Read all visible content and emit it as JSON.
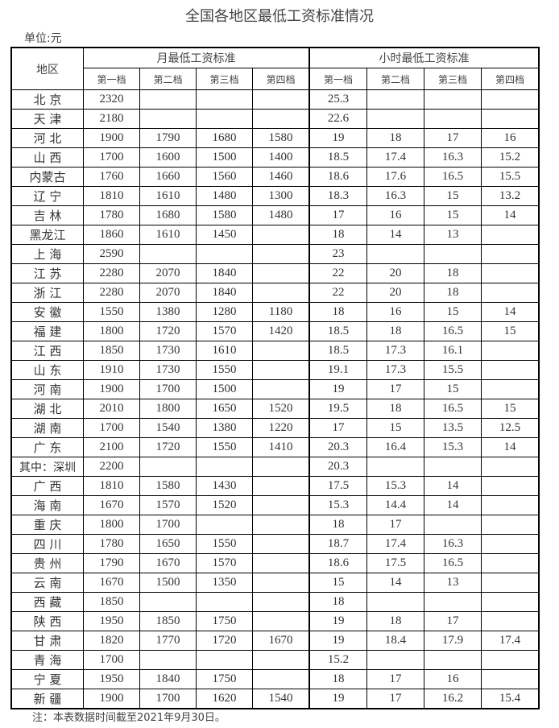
{
  "title": "全国各地区最低工资标准情况",
  "unit": "单位:元",
  "headers": {
    "region": "地区",
    "monthly": "月最低工资标准",
    "hourly": "小时最低工资标准",
    "tiers": [
      "第一档",
      "第二档",
      "第三档",
      "第四档"
    ]
  },
  "rows": [
    {
      "region": "北 京",
      "m": [
        "2320",
        "",
        "",
        ""
      ],
      "h": [
        "25.3",
        "",
        "",
        ""
      ]
    },
    {
      "region": "天 津",
      "m": [
        "2180",
        "",
        "",
        ""
      ],
      "h": [
        "22.6",
        "",
        "",
        ""
      ]
    },
    {
      "region": "河 北",
      "m": [
        "1900",
        "1790",
        "1680",
        "1580"
      ],
      "h": [
        "19",
        "18",
        "17",
        "16"
      ]
    },
    {
      "region": "山 西",
      "m": [
        "1700",
        "1600",
        "1500",
        "1400"
      ],
      "h": [
        "18.5",
        "17.4",
        "16.3",
        "15.2"
      ]
    },
    {
      "region": "内蒙古",
      "m": [
        "1760",
        "1660",
        "1560",
        "1460"
      ],
      "h": [
        "18.6",
        "17.6",
        "16.5",
        "15.5"
      ]
    },
    {
      "region": "辽 宁",
      "m": [
        "1810",
        "1610",
        "1480",
        "1300"
      ],
      "h": [
        "18.3",
        "16.3",
        "15",
        "13.2"
      ]
    },
    {
      "region": "吉 林",
      "m": [
        "1780",
        "1680",
        "1580",
        "1480"
      ],
      "h": [
        "17",
        "16",
        "15",
        "14"
      ]
    },
    {
      "region": "黑龙江",
      "m": [
        "1860",
        "1610",
        "1450",
        ""
      ],
      "h": [
        "18",
        "14",
        "13",
        ""
      ]
    },
    {
      "region": "上 海",
      "m": [
        "2590",
        "",
        "",
        ""
      ],
      "h": [
        "23",
        "",
        "",
        ""
      ]
    },
    {
      "region": "江 苏",
      "m": [
        "2280",
        "2070",
        "1840",
        ""
      ],
      "h": [
        "22",
        "20",
        "18",
        ""
      ]
    },
    {
      "region": "浙 江",
      "m": [
        "2280",
        "2070",
        "1840",
        ""
      ],
      "h": [
        "22",
        "20",
        "18",
        ""
      ]
    },
    {
      "region": "安 徽",
      "m": [
        "1550",
        "1380",
        "1280",
        "1180"
      ],
      "h": [
        "18",
        "16",
        "15",
        "14"
      ]
    },
    {
      "region": "福 建",
      "m": [
        "1800",
        "1720",
        "1570",
        "1420"
      ],
      "h": [
        "18.5",
        "18",
        "16.5",
        "15"
      ]
    },
    {
      "region": "江 西",
      "m": [
        "1850",
        "1730",
        "1610",
        ""
      ],
      "h": [
        "18.5",
        "17.3",
        "16.1",
        ""
      ]
    },
    {
      "region": "山 东",
      "m": [
        "1910",
        "1730",
        "1550",
        ""
      ],
      "h": [
        "19.1",
        "17.3",
        "15.5",
        ""
      ]
    },
    {
      "region": "河 南",
      "m": [
        "1900",
        "1700",
        "1500",
        ""
      ],
      "h": [
        "19",
        "17",
        "15",
        ""
      ]
    },
    {
      "region": "湖 北",
      "m": [
        "2010",
        "1800",
        "1650",
        "1520"
      ],
      "h": [
        "19.5",
        "18",
        "16.5",
        "15"
      ]
    },
    {
      "region": "湖 南",
      "m": [
        "1700",
        "1540",
        "1380",
        "1220"
      ],
      "h": [
        "17",
        "15",
        "13.5",
        "12.5"
      ]
    },
    {
      "region": "广 东",
      "m": [
        "2100",
        "1720",
        "1550",
        "1410"
      ],
      "h": [
        "20.3",
        "16.4",
        "15.3",
        "14"
      ]
    },
    {
      "region": "其中：深圳",
      "m": [
        "2200",
        "",
        "",
        ""
      ],
      "h": [
        "20.3",
        "",
        "",
        ""
      ]
    },
    {
      "region": "广 西",
      "m": [
        "1810",
        "1580",
        "1430",
        ""
      ],
      "h": [
        "17.5",
        "15.3",
        "14",
        ""
      ]
    },
    {
      "region": "海 南",
      "m": [
        "1670",
        "1570",
        "1520",
        ""
      ],
      "h": [
        "15.3",
        "14.4",
        "14",
        ""
      ]
    },
    {
      "region": "重 庆",
      "m": [
        "1800",
        "1700",
        "",
        ""
      ],
      "h": [
        "18",
        "17",
        "",
        ""
      ]
    },
    {
      "region": "四 川",
      "m": [
        "1780",
        "1650",
        "1550",
        ""
      ],
      "h": [
        "18.7",
        "17.4",
        "16.3",
        ""
      ]
    },
    {
      "region": "贵 州",
      "m": [
        "1790",
        "1670",
        "1570",
        ""
      ],
      "h": [
        "18.6",
        "17.5",
        "16.5",
        ""
      ]
    },
    {
      "region": "云 南",
      "m": [
        "1670",
        "1500",
        "1350",
        ""
      ],
      "h": [
        "15",
        "14",
        "13",
        ""
      ]
    },
    {
      "region": "西 藏",
      "m": [
        "1850",
        "",
        "",
        ""
      ],
      "h": [
        "18",
        "",
        "",
        ""
      ]
    },
    {
      "region": "陕 西",
      "m": [
        "1950",
        "1850",
        "1750",
        ""
      ],
      "h": [
        "19",
        "18",
        "17",
        ""
      ]
    },
    {
      "region": "甘 肃",
      "m": [
        "1820",
        "1770",
        "1720",
        "1670"
      ],
      "h": [
        "19",
        "18.4",
        "17.9",
        "17.4"
      ]
    },
    {
      "region": "青 海",
      "m": [
        "1700",
        "",
        "",
        ""
      ],
      "h": [
        "15.2",
        "",
        "",
        ""
      ]
    },
    {
      "region": "宁 夏",
      "m": [
        "1950",
        "1840",
        "1750",
        ""
      ],
      "h": [
        "18",
        "17",
        "16",
        ""
      ]
    },
    {
      "region": "新 疆",
      "m": [
        "1900",
        "1700",
        "1620",
        "1540"
      ],
      "h": [
        "19",
        "17",
        "16.2",
        "15.4"
      ]
    }
  ],
  "note": "注：本表数据时间截至2021年9月30日。"
}
